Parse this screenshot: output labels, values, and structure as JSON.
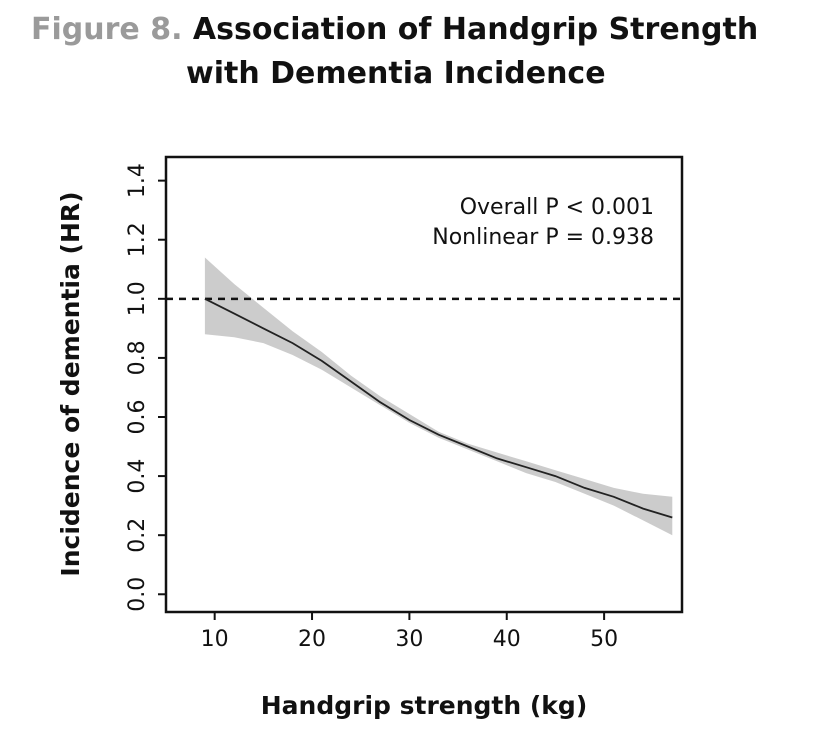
{
  "title": {
    "prefix": "Figure 8.",
    "line1": "Association of Handgrip Strength",
    "line2": "with Dementia Incidence"
  },
  "chart_data": {
    "type": "line",
    "xlabel": "Handgrip strength (kg)",
    "ylabel": "Incidence of dementia (HR)",
    "xlim": [
      5,
      58
    ],
    "ylim": [
      -0.06,
      1.48
    ],
    "x_ticks": [
      10,
      20,
      30,
      40,
      50
    ],
    "y_ticks": [
      0.0,
      0.2,
      0.4,
      0.6,
      0.8,
      1.0,
      1.2,
      1.4
    ],
    "x_tick_labels": [
      "10",
      "20",
      "30",
      "40",
      "50"
    ],
    "y_tick_labels": [
      "0.0",
      "0.2",
      "0.4",
      "0.6",
      "0.8",
      "1.0",
      "1.2",
      "1.4"
    ],
    "reference_line": 1.0,
    "annotations": [
      "Overall P < 0.001",
      "Nonlinear P = 0.938"
    ],
    "series": [
      {
        "x": [
          9,
          12,
          15,
          18,
          21,
          24,
          27,
          30,
          33,
          36,
          39,
          42,
          45,
          48,
          51,
          54,
          57
        ],
        "values": [
          1.0,
          0.95,
          0.9,
          0.85,
          0.79,
          0.72,
          0.65,
          0.59,
          0.54,
          0.5,
          0.46,
          0.43,
          0.4,
          0.36,
          0.33,
          0.29,
          0.26
        ],
        "lower": [
          0.88,
          0.87,
          0.85,
          0.81,
          0.76,
          0.7,
          0.64,
          0.58,
          0.53,
          0.49,
          0.45,
          0.41,
          0.38,
          0.34,
          0.3,
          0.25,
          0.2
        ],
        "upper": [
          1.14,
          1.05,
          0.97,
          0.89,
          0.82,
          0.74,
          0.67,
          0.61,
          0.55,
          0.51,
          0.48,
          0.45,
          0.42,
          0.39,
          0.36,
          0.34,
          0.33
        ]
      }
    ],
    "colors": {
      "line": "#222222",
      "band": "#cccccc",
      "axis": "#111111"
    }
  }
}
